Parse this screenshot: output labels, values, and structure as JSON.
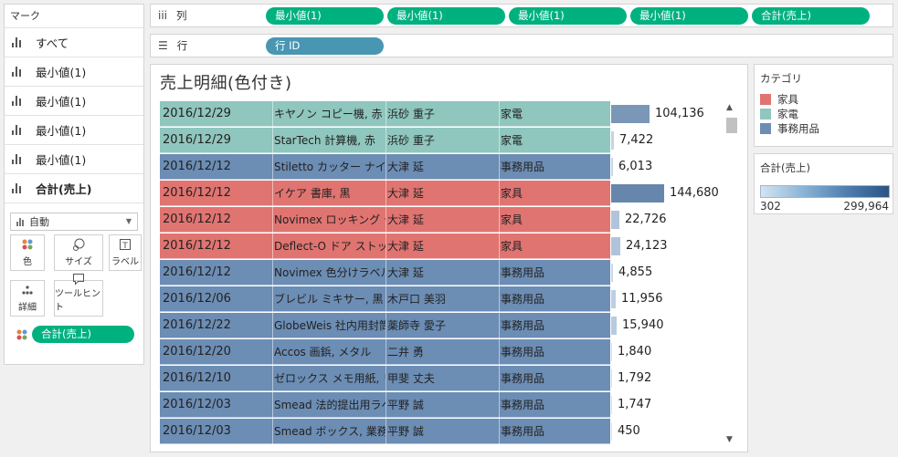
{
  "marks": {
    "title": "マーク",
    "tabs": [
      {
        "label": "すべて"
      },
      {
        "label": "最小値(1)"
      },
      {
        "label": "最小値(1)"
      },
      {
        "label": "最小値(1)"
      },
      {
        "label": "最小値(1)"
      },
      {
        "label": "合計(売上)"
      }
    ],
    "mark_type": "自動",
    "buttons": [
      {
        "label": "色",
        "icon": "color-dots-icon"
      },
      {
        "label": "サイズ",
        "icon": "size-icon"
      },
      {
        "label": "ラベル",
        "icon": "label-icon"
      },
      {
        "label": "詳細",
        "icon": "detail-icon"
      },
      {
        "label": "ツールヒント",
        "icon": "tooltip-icon"
      }
    ],
    "color_pill": "合計(売上)"
  },
  "columns_shelf": {
    "label": "列",
    "pills": [
      "最小値(1)",
      "最小値(1)",
      "最小値(1)",
      "最小値(1)",
      "合計(売上)"
    ]
  },
  "rows_shelf": {
    "label": "行",
    "pills": [
      "行 ID"
    ]
  },
  "view": {
    "title": "売上明細(色付き)",
    "rows": [
      {
        "date": "2016/12/29",
        "product": "キヤノン コピー機, 赤",
        "customer": "浜砂 重子",
        "category": "家電",
        "sales": "104,136",
        "value": 104136
      },
      {
        "date": "2016/12/29",
        "product": "StarTech 計算機, 赤",
        "customer": "浜砂 重子",
        "category": "家電",
        "sales": "7,422",
        "value": 7422
      },
      {
        "date": "2016/12/12",
        "product": "Stiletto カッター ナイフ",
        "customer": "大津 延",
        "category": "事務用品",
        "sales": "6,013",
        "value": 6013
      },
      {
        "date": "2016/12/12",
        "product": "イケア 書庫, 黒",
        "customer": "大津 延",
        "category": "家具",
        "sales": "144,680",
        "value": 144680
      },
      {
        "date": "2016/12/12",
        "product": "Novimex ロッキング チェア",
        "customer": "大津 延",
        "category": "家具",
        "sales": "22,726",
        "value": 22726
      },
      {
        "date": "2016/12/12",
        "product": "Deflect-O ドア ストッパー",
        "customer": "大津 延",
        "category": "家具",
        "sales": "24,123",
        "value": 24123
      },
      {
        "date": "2016/12/12",
        "product": "Novimex 色分けラベル",
        "customer": "大津 延",
        "category": "事務用品",
        "sales": "4,855",
        "value": 4855
      },
      {
        "date": "2016/12/06",
        "product": "ブレビル ミキサー, 黒",
        "customer": "木戸口 美羽",
        "category": "事務用品",
        "sales": "11,956",
        "value": 11956
      },
      {
        "date": "2016/12/22",
        "product": "GlobeWeis 社内用封筒",
        "customer": "薬師寺 愛子",
        "category": "事務用品",
        "sales": "15,940",
        "value": 15940
      },
      {
        "date": "2016/12/20",
        "product": "Accos 画鋲, メタル",
        "customer": "二井 勇",
        "category": "事務用品",
        "sales": "1,840",
        "value": 1840
      },
      {
        "date": "2016/12/10",
        "product": "ゼロックス メモ用紙, リサイクル",
        "customer": "甲斐 丈夫",
        "category": "事務用品",
        "sales": "1,792",
        "value": 1792
      },
      {
        "date": "2016/12/03",
        "product": "Smead 法的提出用ラベル",
        "customer": "平野 誠",
        "category": "事務用品",
        "sales": "1,747",
        "value": 1747
      },
      {
        "date": "2016/12/03",
        "product": "Smead ボックス, 業務用",
        "customer": "平野 誠",
        "category": "事務用品",
        "sales": "450",
        "value": 450
      }
    ]
  },
  "legend_category": {
    "title": "カテゴリ",
    "items": [
      {
        "label": "家具",
        "color": "#e07471"
      },
      {
        "label": "家電",
        "color": "#8fc6bd"
      },
      {
        "label": "事務用品",
        "color": "#6c8db4"
      }
    ]
  },
  "legend_sales": {
    "title": "合計(売上)",
    "min": "302",
    "max": "299,964",
    "min_value": 302,
    "max_value": 299964
  }
}
